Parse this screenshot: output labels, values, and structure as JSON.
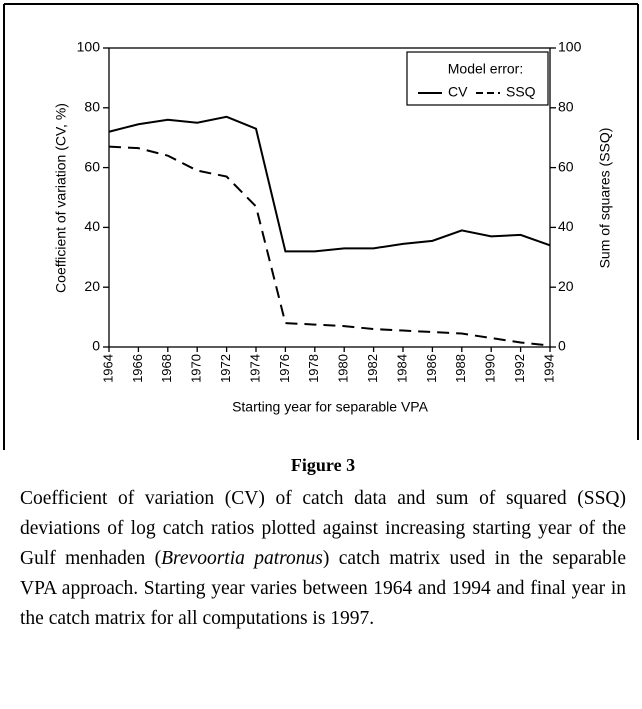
{
  "chart_data": {
    "type": "line",
    "x_label": "Starting year for separable VPA",
    "y_label": "Coefficient of variation (CV, %)",
    "y2_label": "Sum of squares (SSQ)",
    "legend_title": "Model error:",
    "x": [
      1964,
      1966,
      1968,
      1970,
      1972,
      1974,
      1976,
      1978,
      1980,
      1982,
      1984,
      1986,
      1988,
      1990,
      1992,
      1994
    ],
    "series": [
      {
        "name": "CV",
        "color": "#000000",
        "linestyle": "solid",
        "values": [
          72,
          74.5,
          76,
          75,
          77,
          73,
          32,
          32,
          33,
          33,
          34.5,
          35.5,
          39,
          37,
          37.5,
          34
        ]
      },
      {
        "name": "SSQ",
        "color": "#000000",
        "linestyle": "dashed",
        "axis": "y2",
        "values": [
          67,
          66.5,
          64,
          59,
          57,
          47,
          8,
          7.5,
          7,
          6,
          5.5,
          5,
          4.5,
          3,
          1.5,
          0.5
        ]
      }
    ],
    "xlim": [
      1964,
      1994
    ],
    "xticks": [
      1964,
      1966,
      1968,
      1970,
      1972,
      1974,
      1976,
      1978,
      1980,
      1982,
      1984,
      1986,
      1988,
      1990,
      1992,
      1994
    ],
    "ylim": [
      0,
      100
    ],
    "yticks": [
      0,
      20,
      40,
      60,
      80,
      100
    ],
    "y2lim": [
      0,
      100
    ],
    "y2ticks": [
      0,
      20,
      40,
      60,
      80,
      100
    ],
    "legend_position": "upper right",
    "grid": false
  },
  "caption": {
    "title": "Figure 3",
    "text_1": "Coefficient of variation (CV) of catch data and sum of squared (SSQ) deviations of log catch ratios plotted against increasing starting year of the Gulf menhaden (",
    "species": "Brevoortia patronus",
    "text_2": ") catch matrix used in the separable VPA approach. Starting year varies between 1964 and 1994 and final year in the catch matrix for all computations is 1997."
  }
}
